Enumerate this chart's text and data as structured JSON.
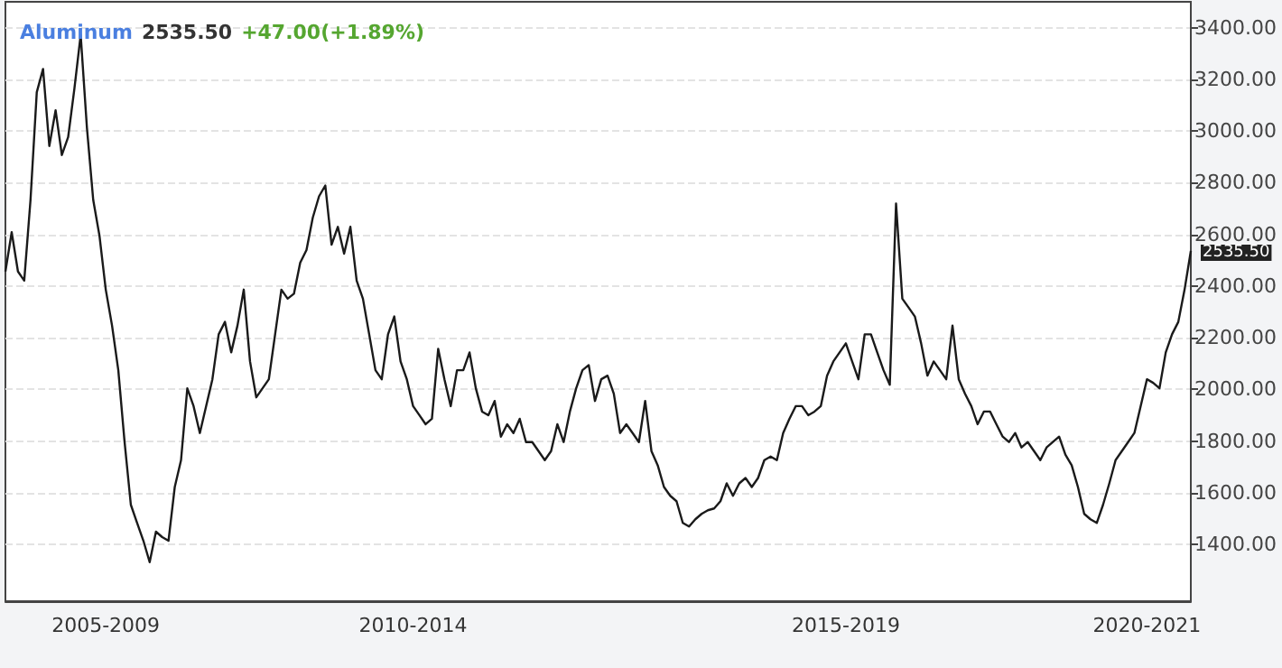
{
  "chart_data": {
    "type": "line",
    "title": "Aluminum",
    "annotations": [
      "2535.50",
      "+47.00(+1.89%)",
      "2535.50"
    ],
    "categories": [
      null,
      null,
      null,
      null,
      null,
      null,
      null,
      null,
      null,
      null,
      null,
      null,
      null,
      null,
      null,
      null,
      "2005-2009",
      null,
      null,
      null,
      null,
      null,
      null,
      null,
      null,
      null,
      null,
      null,
      null,
      null,
      null,
      null,
      null,
      null,
      null,
      null,
      null,
      null,
      null,
      null,
      null,
      null,
      null,
      null,
      null,
      null,
      null,
      null,
      null,
      null,
      null,
      null,
      null,
      null,
      null,
      null,
      null,
      null,
      null,
      null,
      null,
      null,
      null,
      null,
      null,
      "2010-2014",
      null,
      null,
      null,
      null,
      null,
      null,
      null,
      null,
      null,
      null,
      null,
      null,
      null,
      null,
      null,
      null,
      null,
      null,
      null,
      null,
      null,
      null,
      null,
      null,
      null,
      null,
      null,
      null,
      null,
      null,
      null,
      null,
      null,
      null,
      null,
      null,
      null,
      null,
      null,
      null,
      null,
      null,
      null,
      null,
      null,
      null,
      null,
      null,
      null,
      null,
      null,
      null,
      null,
      null,
      null,
      null,
      null,
      null,
      null,
      null,
      null,
      null,
      null,
      null,
      null,
      null,
      null,
      null,
      "2015-2019",
      null,
      null,
      null,
      null,
      null,
      null,
      null,
      null,
      null,
      null,
      null,
      null,
      null,
      null,
      null,
      null,
      null,
      null,
      null,
      null,
      null,
      null,
      null,
      null,
      null,
      null,
      null,
      null,
      null,
      null,
      null,
      null,
      null,
      null,
      null,
      null,
      null,
      null,
      null,
      null,
      null,
      null,
      null,
      null,
      null,
      null,
      null,
      "2020-2021",
      null,
      null,
      null,
      null,
      null,
      null,
      null
    ],
    "series": [
      {
        "color": "#1a1a1a",
        "values": [
          2456,
          2608,
          2456,
          2421,
          2733,
          3150,
          3240,
          2942,
          3080,
          2907,
          2976,
          3164,
          3372,
          3011,
          2733,
          2594,
          2386,
          2247,
          2074,
          1796,
          1553,
          1483,
          1414,
          1331,
          1449,
          1428,
          1414,
          1622,
          1726,
          2004,
          1935,
          1831,
          1935,
          2039,
          2213,
          2261,
          2143,
          2247,
          2386,
          2108,
          1969,
          2004,
          2039,
          2213,
          2386,
          2351,
          2370,
          2490,
          2539,
          2664,
          2747,
          2789,
          2560,
          2629,
          2525,
          2629,
          2421,
          2351,
          2213,
          2074,
          2039,
          2213,
          2282,
          2108,
          2039,
          1935,
          1900,
          1865,
          1886,
          2157,
          2039,
          1935,
          2074,
          2074,
          2143,
          2004,
          1914,
          1900,
          1955,
          1817,
          1865,
          1831,
          1886,
          1796,
          1796,
          1761,
          1726,
          1761,
          1865,
          1796,
          1914,
          2004,
          2074,
          2094,
          1955,
          2039,
          2053,
          1983,
          1831,
          1865,
          1831,
          1796,
          1955,
          1761,
          1706,
          1622,
          1588,
          1567,
          1483,
          1469,
          1497,
          1518,
          1532,
          1539,
          1567,
          1636,
          1588,
          1636,
          1657,
          1622,
          1657,
          1726,
          1740,
          1726,
          1831,
          1886,
          1935,
          1935,
          1900,
          1914,
          1935,
          2053,
          2108,
          2143,
          2178,
          2108,
          2039,
          2213,
          2213,
          2143,
          2074,
          2018,
          2719,
          2351,
          2317,
          2282,
          2178,
          2053,
          2108,
          2074,
          2039,
          2247,
          2039,
          1983,
          1935,
          1865,
          1914,
          1914,
          1865,
          1817,
          1796,
          1831,
          1775,
          1796,
          1761,
          1726,
          1775,
          1796,
          1817,
          1747,
          1706,
          1622,
          1518,
          1497,
          1483,
          1553,
          1636,
          1726,
          1761,
          1796,
          1831,
          1935,
          2039,
          2025,
          2004,
          2143,
          2213,
          2261,
          2386,
          2535.5
        ]
      }
    ],
    "ylim": [
      1180,
      3500
    ],
    "yticks": [
      {
        "value": 1400,
        "label": "1400.00"
      },
      {
        "value": 1600,
        "label": "1600.00"
      },
      {
        "value": 1800,
        "label": "1800.00"
      },
      {
        "value": 2000,
        "label": "2000.00"
      },
      {
        "value": 2200,
        "label": "2200.00"
      },
      {
        "value": 2400,
        "label": "2400.00"
      },
      {
        "value": 2600,
        "label": "2600.00"
      },
      {
        "value": 2800,
        "label": "2800.00"
      },
      {
        "value": 3000,
        "label": "3000.00"
      },
      {
        "value": 3200,
        "label": "3200.00"
      },
      {
        "value": 3400,
        "label": "3400.00"
      }
    ],
    "grid": "y",
    "marker": "none",
    "line_style": "solid"
  }
}
